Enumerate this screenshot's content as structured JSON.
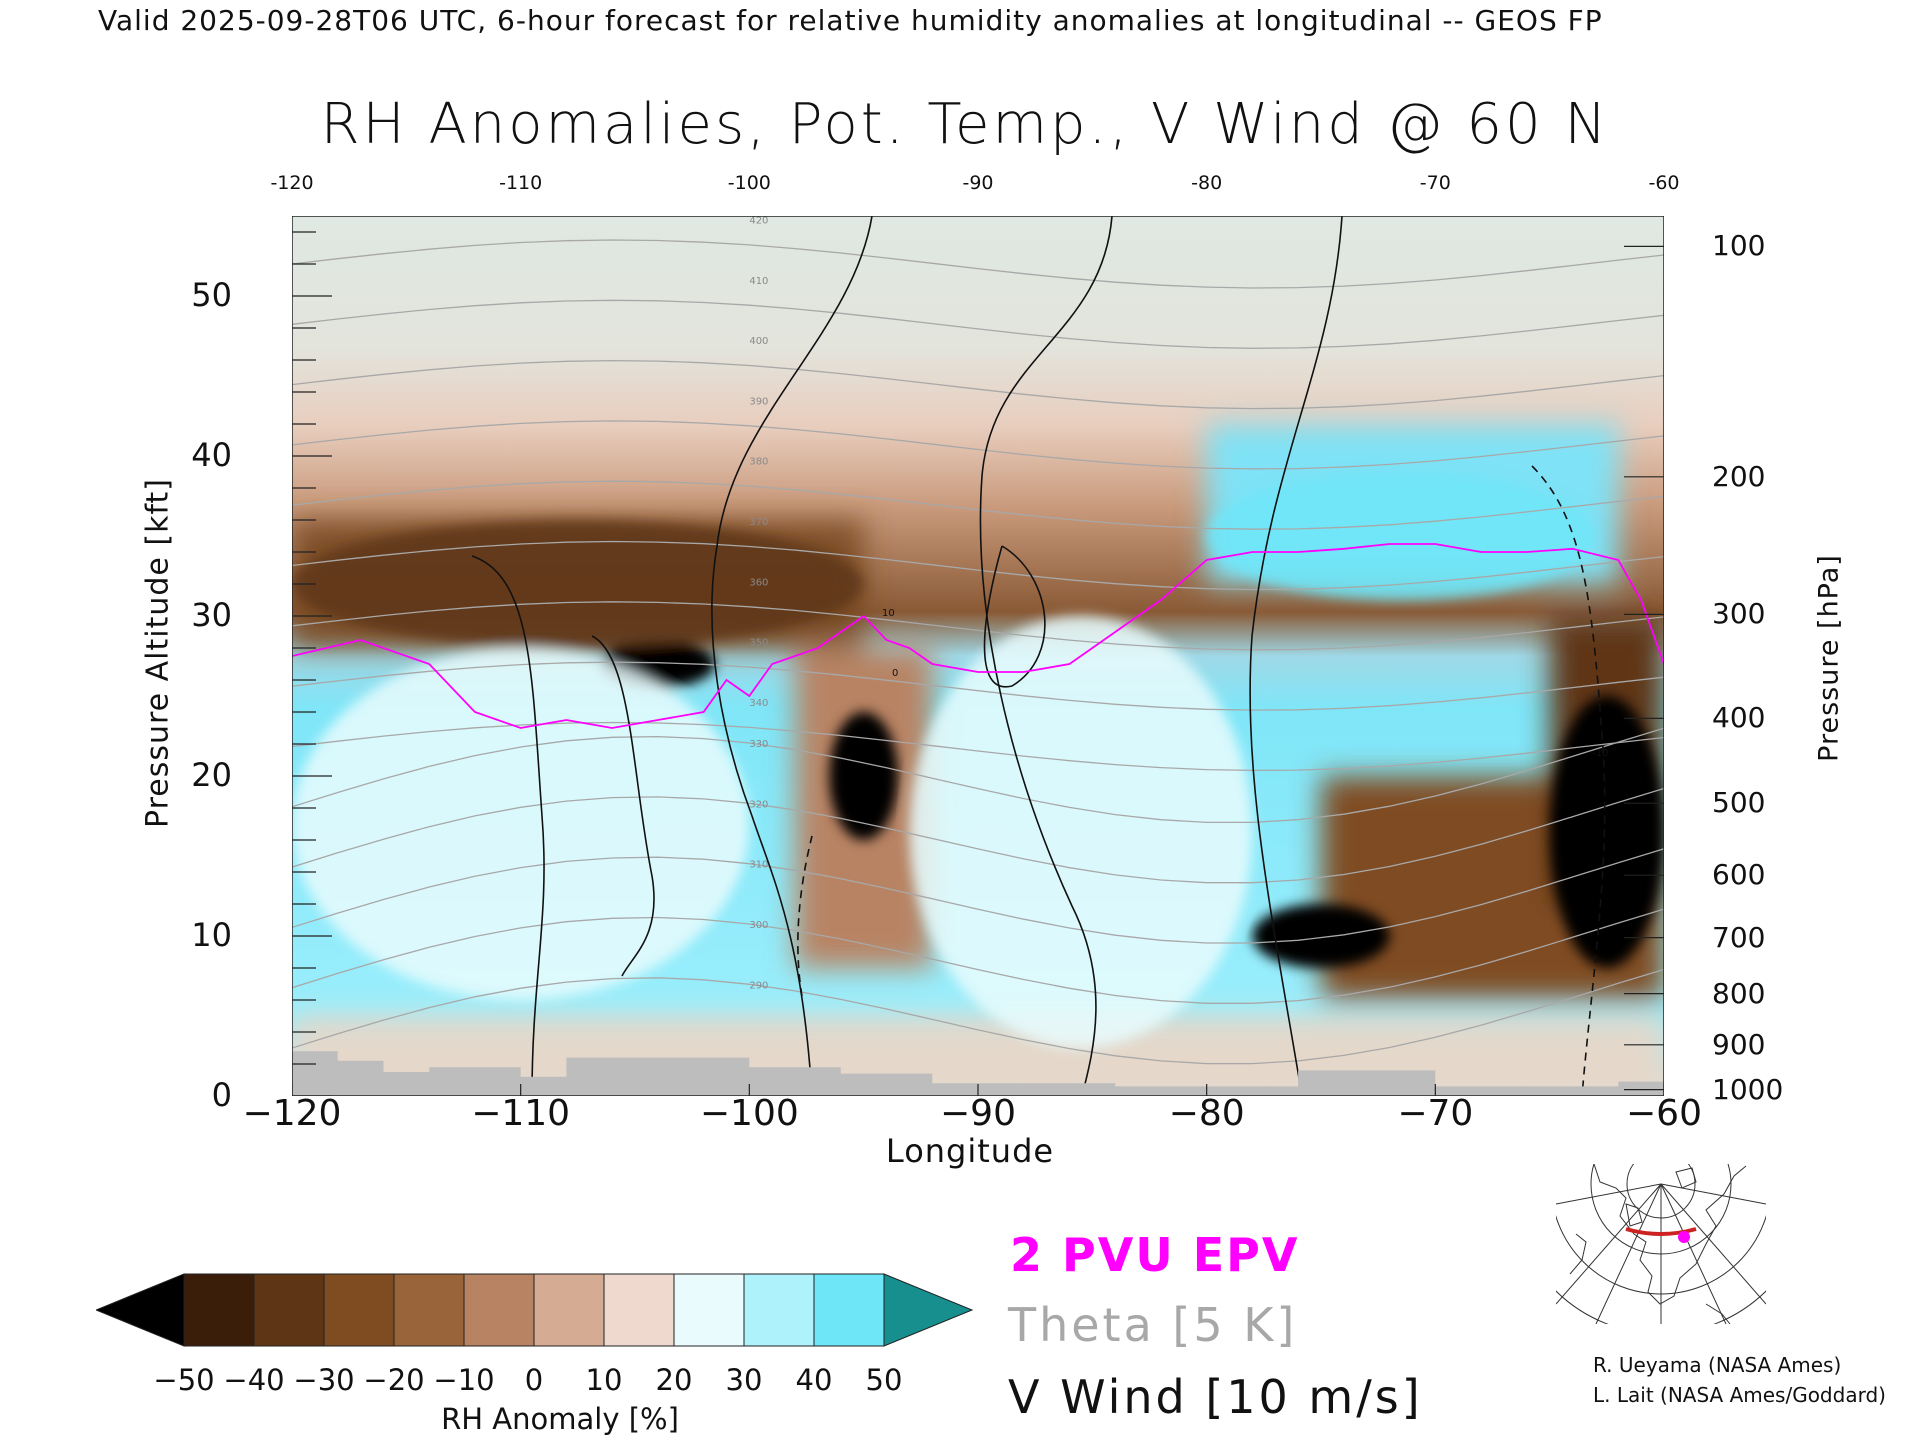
{
  "header": {
    "valid_line": "Valid 2025-09-28T06 UTC, 6-hour forecast for relative humidity anomalies at longitudinal -- GEOS FP"
  },
  "chart_data": {
    "type": "heatmap",
    "title": "RH Anomalies, Pot. Temp., V Wind @ 60 N",
    "xlabel": "Longitude",
    "ylabel": "Pressure Altitude [kft]",
    "ylabel_right": "Pressure [hPa]",
    "xlim": [
      -120,
      -60
    ],
    "ylim": [
      0,
      55
    ],
    "x_ticks": [
      "-120",
      "-110",
      "-100",
      "-90",
      "-80",
      "-70",
      "-60"
    ],
    "x_ticks_bottom": [
      "−120",
      "−110",
      "−100",
      "−90",
      "−80",
      "−70",
      "−60"
    ],
    "y_ticks": [
      "0",
      "10",
      "20",
      "30",
      "40",
      "50"
    ],
    "y_ticks_right": [
      {
        "label": "100",
        "kft": 53.1
      },
      {
        "label": "200",
        "kft": 38.7
      },
      {
        "label": "300",
        "kft": 30.1
      },
      {
        "label": "400",
        "kft": 23.6
      },
      {
        "label": "500",
        "kft": 18.3
      },
      {
        "label": "600",
        "kft": 13.8
      },
      {
        "label": "700",
        "kft": 9.9
      },
      {
        "label": "800",
        "kft": 6.4
      },
      {
        "label": "900",
        "kft": 3.2
      },
      {
        "label": "1000",
        "kft": 0.4
      }
    ],
    "colorbar": {
      "label": "RH Anomaly [%]",
      "ticks": [
        "−50",
        "−40",
        "−30",
        "−20",
        "−10",
        "0",
        "10",
        "20",
        "30",
        "40",
        "50"
      ],
      "range": [
        -50,
        50
      ],
      "colors_below_to_above": [
        "#000000",
        "#3a1e0a",
        "#5e3515",
        "#7f4c22",
        "#9a643a",
        "#b88363",
        "#d6ab93",
        "#efd9ce",
        "#e9fbfd",
        "#aef2fb",
        "#6ee6f8",
        "#33d3f0",
        "#16b2d6",
        "#0c8bb0",
        "#178f8f"
      ]
    },
    "anomaly_regions": [
      {
        "sign": "negative",
        "value": -60,
        "lon": [
          -106.5,
          -101.5
        ],
        "kft": [
          25.5,
          28.5
        ]
      },
      {
        "sign": "negative",
        "value": -60,
        "lon": [
          -96.5,
          -93.5
        ],
        "kft": [
          16,
          24
        ]
      },
      {
        "sign": "negative",
        "value": -60,
        "lon": [
          -78,
          -72
        ],
        "kft": [
          8,
          12
        ]
      },
      {
        "sign": "negative",
        "value": -60,
        "lon": [
          -65,
          -60
        ],
        "kft": [
          8,
          25
        ]
      },
      {
        "sign": "negative",
        "value": -35,
        "lon": [
          -120,
          -95
        ],
        "kft": [
          28,
          36
        ]
      },
      {
        "sign": "positive",
        "value": 45,
        "lon": [
          -80,
          -63
        ],
        "kft": [
          31,
          39
        ]
      },
      {
        "sign": "positive",
        "value": 20,
        "lon": [
          -120,
          -100
        ],
        "kft": [
          6,
          28
        ]
      },
      {
        "sign": "positive",
        "value": 20,
        "lon": [
          -93,
          -78
        ],
        "kft": [
          3,
          30
        ]
      }
    ],
    "theta_contours_K": [
      290,
      300,
      310,
      320,
      330,
      340,
      350,
      360,
      370,
      380,
      390,
      400,
      410,
      420
    ],
    "theta_contour_interval": "5 K",
    "vwind_contour_interval": "10 m/s",
    "vwind_contour_labels": [
      "-10",
      "0",
      "10"
    ],
    "epv_contour": "2 PVU",
    "epv_2pvu_kft": {
      "lon": [
        -120,
        -117,
        -114,
        -112,
        -110,
        -108,
        -106,
        -104,
        -102,
        -101,
        -100,
        -99,
        -98,
        -97,
        -95,
        -94,
        -93,
        -92,
        -90,
        -88,
        -86,
        -84,
        -82,
        -80,
        -78,
        -76,
        -74,
        -72,
        -70,
        -68,
        -66,
        -64,
        -62,
        -61,
        -60
      ],
      "kft": [
        27.5,
        28.5,
        27,
        24,
        23,
        23.5,
        23,
        23.5,
        24,
        26,
        25,
        27,
        27.5,
        28,
        30,
        28.5,
        28,
        27,
        26.5,
        26.5,
        27,
        29,
        31,
        33.5,
        34,
        34,
        34.2,
        34.5,
        34.5,
        34,
        34,
        34.2,
        33.5,
        31,
        27
      ]
    },
    "surface_mask": "grey terrain below ~2 kft",
    "legend": [
      "2 PVU EPV",
      "Theta [5 K]",
      "V Wind [10 m/s]"
    ],
    "legend_colors": {
      "epv": "#ff00ff",
      "theta": "#a8a8a8",
      "vwind": "#111111"
    }
  },
  "legend": {
    "epv": "2 PVU EPV",
    "theta": "Theta [5 K]",
    "vwind": "V Wind [10 m/s]"
  },
  "credits": {
    "line1": "R. Ueyama (NASA Ames)",
    "line2": "L. Lait (NASA Ames/Goddard)"
  },
  "inset_map": {
    "icon": "globe-map-icon",
    "track_color": "#cc2222",
    "marker_color": "#ff00ff"
  }
}
